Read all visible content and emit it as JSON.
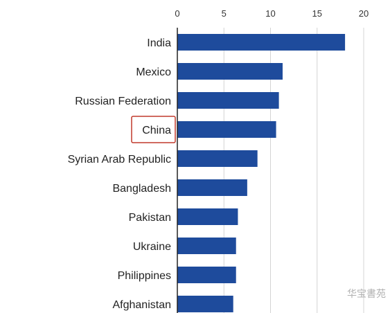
{
  "chart_data": {
    "type": "bar",
    "orientation": "horizontal",
    "categories": [
      "India",
      "Mexico",
      "Russian Federation",
      "China",
      "Syrian Arab Republic",
      "Bangladesh",
      "Pakistan",
      "Ukraine",
      "Philippines",
      "Afghanistan"
    ],
    "values": [
      18.0,
      11.3,
      10.9,
      10.6,
      8.6,
      7.5,
      6.5,
      6.3,
      6.3,
      6.0
    ],
    "xlim": [
      0,
      20
    ],
    "xticks": [
      0,
      5,
      10,
      15,
      20
    ],
    "xtick_labels": [
      "0",
      "5",
      "10",
      "15",
      "20"
    ],
    "x_axis_position": "top",
    "grid": true,
    "highlighted_category": "China",
    "bar_color": "#1e4b9c",
    "highlight_color": "#c0392b",
    "title": "",
    "xlabel": "",
    "ylabel": ""
  },
  "watermark_text": "华宝書苑"
}
